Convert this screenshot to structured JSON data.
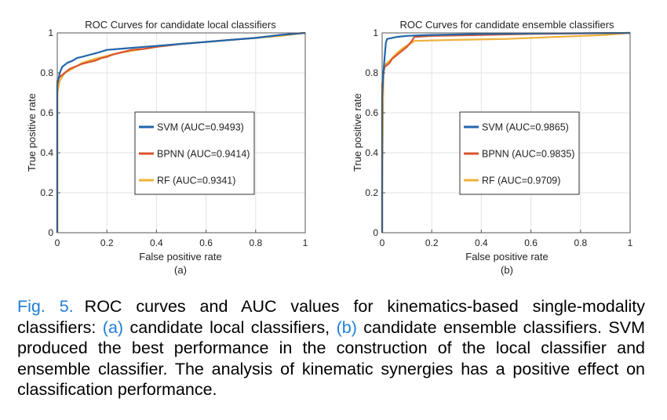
{
  "colors": {
    "svm": "#2166ac",
    "bpnn": "#d9542b",
    "rf": "#eeb23a",
    "caption_accent": "#1f7fd6"
  },
  "chart_data": [
    {
      "type": "line",
      "title": "ROC Curves for candidate local classifiers",
      "xlabel": "False positive rate",
      "ylabel": "True positive rate",
      "sublabel": "(a)",
      "xlim": [
        0,
        1
      ],
      "ylim": [
        0,
        1
      ],
      "xticks": [
        "0",
        "0.2",
        "0.4",
        "0.6",
        "0.8",
        "1"
      ],
      "yticks": [
        "0",
        "0.2",
        "0.4",
        "0.6",
        "0.8",
        "1"
      ],
      "grid": true,
      "legend_position": "center",
      "series": [
        {
          "name": "SVM (AUC=0.9493)",
          "color": "svm",
          "points": [
            [
              0,
              0
            ],
            [
              0,
              0.74
            ],
            [
              0.01,
              0.8
            ],
            [
              0.02,
              0.83
            ],
            [
              0.04,
              0.85
            ],
            [
              0.06,
              0.86
            ],
            [
              0.08,
              0.875
            ],
            [
              0.1,
              0.88
            ],
            [
              0.13,
              0.89
            ],
            [
              0.16,
              0.9
            ],
            [
              0.2,
              0.915
            ],
            [
              0.25,
              0.92
            ],
            [
              0.3,
              0.925
            ],
            [
              0.35,
              0.93
            ],
            [
              0.4,
              0.935
            ],
            [
              0.5,
              0.945
            ],
            [
              0.6,
              0.955
            ],
            [
              0.7,
              0.965
            ],
            [
              0.8,
              0.975
            ],
            [
              0.9,
              0.99
            ],
            [
              1,
              1
            ]
          ]
        },
        {
          "name": "BPNN (AUC=0.9414)",
          "color": "bpnn",
          "points": [
            [
              0,
              0
            ],
            [
              0,
              0.76
            ],
            [
              0.01,
              0.78
            ],
            [
              0.03,
              0.8
            ],
            [
              0.05,
              0.82
            ],
            [
              0.07,
              0.83
            ],
            [
              0.1,
              0.845
            ],
            [
              0.13,
              0.855
            ],
            [
              0.15,
              0.86
            ],
            [
              0.18,
              0.875
            ],
            [
              0.2,
              0.88
            ],
            [
              0.22,
              0.89
            ],
            [
              0.25,
              0.9
            ],
            [
              0.3,
              0.915
            ],
            [
              0.35,
              0.92
            ],
            [
              0.4,
              0.93
            ],
            [
              0.5,
              0.945
            ],
            [
              0.6,
              0.955
            ],
            [
              0.7,
              0.965
            ],
            [
              0.8,
              0.975
            ],
            [
              0.9,
              0.99
            ],
            [
              1,
              1
            ]
          ]
        },
        {
          "name": "RF (AUC=0.9341)",
          "color": "rf",
          "points": [
            [
              0,
              0
            ],
            [
              0,
              0.7
            ],
            [
              0.01,
              0.76
            ],
            [
              0.03,
              0.8
            ],
            [
              0.06,
              0.82
            ],
            [
              0.1,
              0.85
            ],
            [
              0.15,
              0.87
            ],
            [
              0.2,
              0.885
            ],
            [
              0.25,
              0.9
            ],
            [
              0.3,
              0.91
            ],
            [
              0.4,
              0.93
            ],
            [
              0.5,
              0.945
            ],
            [
              0.6,
              0.955
            ],
            [
              0.7,
              0.965
            ],
            [
              0.8,
              0.975
            ],
            [
              0.9,
              0.985
            ],
            [
              1,
              1
            ]
          ]
        }
      ]
    },
    {
      "type": "line",
      "title": "ROC Curves for candidate ensemble classifiers",
      "xlabel": "False positive rate",
      "ylabel": "True positive rate",
      "sublabel": "(b)",
      "xlim": [
        0,
        1
      ],
      "ylim": [
        0,
        1
      ],
      "xticks": [
        "0",
        "0.2",
        "0.4",
        "0.6",
        "0.8",
        "1"
      ],
      "yticks": [
        "0",
        "0.2",
        "0.4",
        "0.6",
        "0.8",
        "1"
      ],
      "grid": true,
      "legend_position": "center",
      "series": [
        {
          "name": "SVM (AUC=0.9865)",
          "color": "svm",
          "points": [
            [
              0,
              0
            ],
            [
              0,
              0.68
            ],
            [
              0.005,
              0.8
            ],
            [
              0.01,
              0.88
            ],
            [
              0.015,
              0.95
            ],
            [
              0.02,
              0.97
            ],
            [
              0.04,
              0.975
            ],
            [
              0.06,
              0.98
            ],
            [
              0.1,
              0.985
            ],
            [
              0.15,
              0.988
            ],
            [
              0.2,
              0.99
            ],
            [
              0.4,
              0.995
            ],
            [
              0.6,
              0.997
            ],
            [
              1,
              1
            ]
          ]
        },
        {
          "name": "BPNN (AUC=0.9835)",
          "color": "bpnn",
          "points": [
            [
              0,
              0
            ],
            [
              0,
              0.74
            ],
            [
              0.005,
              0.8
            ],
            [
              0.01,
              0.83
            ],
            [
              0.03,
              0.85
            ],
            [
              0.04,
              0.87
            ],
            [
              0.06,
              0.89
            ],
            [
              0.08,
              0.91
            ],
            [
              0.1,
              0.93
            ],
            [
              0.12,
              0.96
            ],
            [
              0.13,
              0.98
            ],
            [
              0.2,
              0.985
            ],
            [
              0.4,
              0.99
            ],
            [
              0.6,
              0.995
            ],
            [
              1,
              1
            ]
          ]
        },
        {
          "name": "RF (AUC=0.9709)",
          "color": "rf",
          "points": [
            [
              0,
              0
            ],
            [
              0,
              0.2
            ],
            [
              0.005,
              0.8
            ],
            [
              0.01,
              0.84
            ],
            [
              0.03,
              0.86
            ],
            [
              0.06,
              0.9
            ],
            [
              0.09,
              0.93
            ],
            [
              0.12,
              0.95
            ],
            [
              0.13,
              0.96
            ],
            [
              0.3,
              0.965
            ],
            [
              0.5,
              0.97
            ],
            [
              0.7,
              0.98
            ],
            [
              0.9,
              0.99
            ],
            [
              1,
              1
            ]
          ]
        }
      ]
    }
  ],
  "caption": {
    "fig_label": "Fig. 5.",
    "part1": "ROC curves and AUC values for kinematics-based single-modality classifiers: ",
    "ref_a": "(a)",
    "part2": " candidate local classifiers, ",
    "ref_b": "(b)",
    "part3": " candidate ensemble classifiers. SVM produced the best performance in the construction of the local classifier and ensemble classifier. The analysis of kinematic synergies has a positive effect on classification performance."
  }
}
